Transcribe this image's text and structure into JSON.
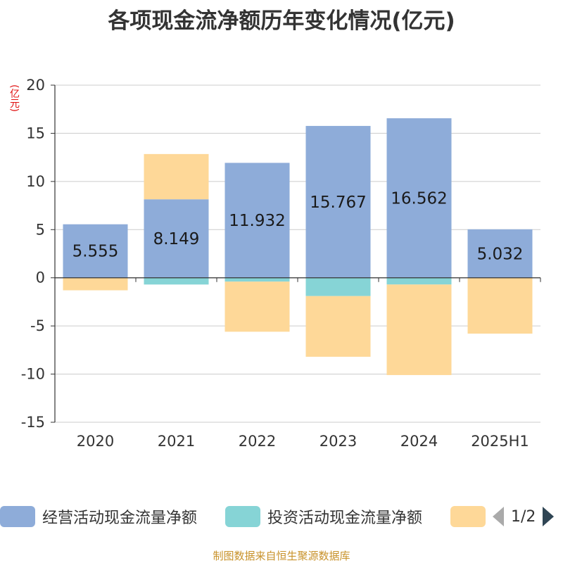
{
  "title": "各项现金流净额历年变化情况(亿元)",
  "unit_label": "(亿元)",
  "source": "制图数据来自恒生聚源数据库",
  "legend": {
    "pager": "1/2",
    "items": [
      {
        "label": "经营活动现金流量净额",
        "color": "#8eacd9"
      },
      {
        "label": "投资活动现金流量净额",
        "color": "#86d4d6"
      },
      {
        "label": "",
        "color": "#fed898"
      }
    ]
  },
  "chart_data": {
    "type": "bar",
    "stacked": true,
    "categories": [
      "2020",
      "2021",
      "2022",
      "2023",
      "2024",
      "2025H1"
    ],
    "ylim": [
      -15,
      20
    ],
    "yticks": [
      20,
      15,
      10,
      5,
      0,
      -5,
      -10,
      -15
    ],
    "grid": true,
    "legend_position": "bottom",
    "series": [
      {
        "name": "经营活动现金流量净额",
        "color": "#8eacd9",
        "values": [
          5.555,
          8.149,
          11.932,
          15.767,
          16.562,
          5.032
        ],
        "data_labels": [
          "5.555",
          "8.149",
          "11.932",
          "15.767",
          "16.562",
          "5.032"
        ]
      },
      {
        "name": "投资活动现金流量净额",
        "color": "#86d4d6",
        "values": [
          0,
          -0.7,
          -0.4,
          -1.9,
          -0.7,
          0
        ]
      },
      {
        "name": "",
        "color": "#fed898",
        "values": [
          -1.3,
          4.7,
          -5.2,
          -6.3,
          -9.4,
          -5.8
        ]
      }
    ]
  }
}
